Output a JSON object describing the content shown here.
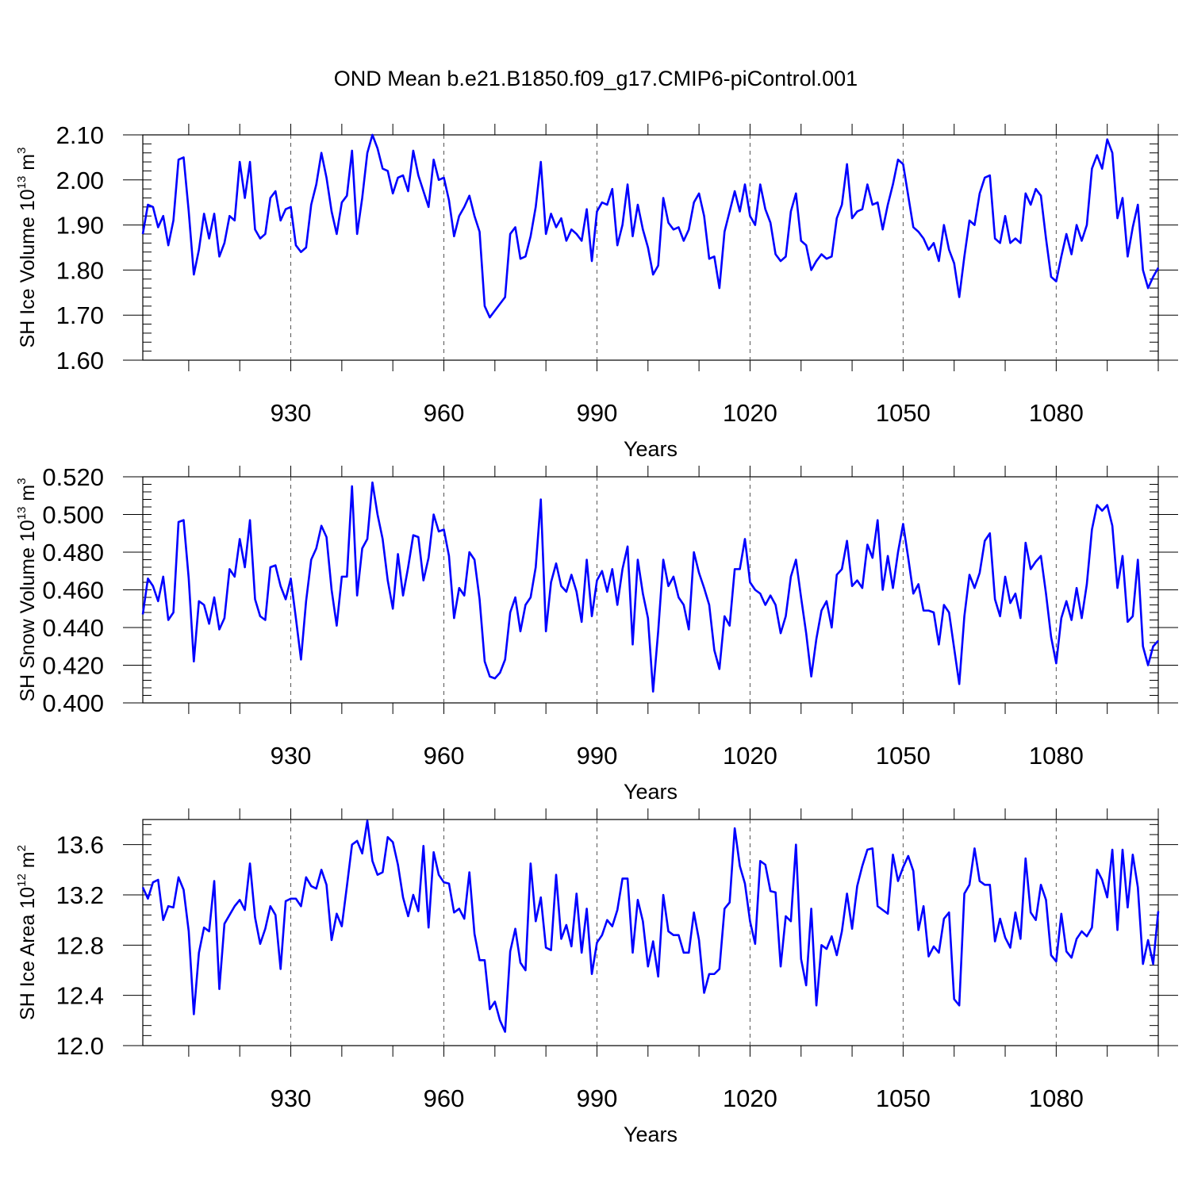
{
  "title": "OND Mean b.e21.B1850.f09_g17.CMIP6-piControl.001",
  "line_color": "#0000ff",
  "chart_data": [
    {
      "type": "line",
      "name": "sh-ice-volume",
      "ylabel_parts": [
        "SH Ice Volume 10",
        "13",
        " m",
        "3"
      ],
      "xlabel": "Years",
      "xlim": [
        901,
        1100
      ],
      "xticks": [
        "930",
        "960",
        "990",
        "1020",
        "1050",
        "1080"
      ],
      "ylim": [
        1.6,
        2.1
      ],
      "yticks": [
        "1.60",
        "1.70",
        "1.80",
        "1.90",
        "2.00",
        "2.10"
      ],
      "yminor": 0.02,
      "x_start": 901,
      "values": [
        1.88,
        1.945,
        1.94,
        1.895,
        1.92,
        1.855,
        1.91,
        2.045,
        2.05,
        1.93,
        1.79,
        1.845,
        1.925,
        1.87,
        1.925,
        1.83,
        1.86,
        1.92,
        1.91,
        2.04,
        1.96,
        2.04,
        1.89,
        1.87,
        1.88,
        1.96,
        1.975,
        1.91,
        1.935,
        1.94,
        1.855,
        1.84,
        1.85,
        1.945,
        1.99,
        2.06,
        2.005,
        1.93,
        1.88,
        1.95,
        1.965,
        2.065,
        1.88,
        1.96,
        2.06,
        2.1,
        2.07,
        2.025,
        2.02,
        1.97,
        2.005,
        2.01,
        1.975,
        2.065,
        2.01,
        1.975,
        1.94,
        2.045,
        2.0,
        2.005,
        1.955,
        1.875,
        1.92,
        1.94,
        1.965,
        1.92,
        1.885,
        1.72,
        1.695,
        1.71,
        1.725,
        1.74,
        1.88,
        1.895,
        1.825,
        1.83,
        1.875,
        1.94,
        2.04,
        1.88,
        1.925,
        1.895,
        1.915,
        1.865,
        1.89,
        1.88,
        1.865,
        1.935,
        1.82,
        1.93,
        1.95,
        1.945,
        1.98,
        1.855,
        1.9,
        1.99,
        1.875,
        1.945,
        1.89,
        1.85,
        1.79,
        1.81,
        1.96,
        1.905,
        1.89,
        1.895,
        1.865,
        1.89,
        1.95,
        1.97,
        1.92,
        1.825,
        1.83,
        1.76,
        1.885,
        1.93,
        1.975,
        1.93,
        1.99,
        1.92,
        1.9,
        1.99,
        1.935,
        1.905,
        1.835,
        1.82,
        1.83,
        1.93,
        1.97,
        1.865,
        1.855,
        1.8,
        1.82,
        1.835,
        1.825,
        1.83,
        1.915,
        1.945,
        2.035,
        1.915,
        1.93,
        1.935,
        1.99,
        1.945,
        1.95,
        1.89,
        1.945,
        1.99,
        2.045,
        2.035,
        1.965,
        1.895,
        1.885,
        1.87,
        1.845,
        1.86,
        1.82,
        1.9,
        1.845,
        1.815,
        1.74,
        1.83,
        1.91,
        1.9,
        1.97,
        2.005,
        2.01,
        1.87,
        1.86,
        1.92,
        1.86,
        1.87,
        1.86,
        1.97,
        1.945,
        1.98,
        1.965,
        1.87,
        1.785,
        1.775,
        1.83,
        1.88,
        1.835,
        1.9,
        1.865,
        1.9,
        2.025,
        2.055,
        2.025,
        2.09,
        2.06,
        1.915,
        1.96,
        1.83,
        1.895,
        1.945,
        1.8,
        1.76,
        1.785,
        1.805
      ]
    },
    {
      "type": "line",
      "name": "sh-snow-volume",
      "ylabel_parts": [
        "SH Snow Volume 10",
        "13",
        " m",
        "3"
      ],
      "xlabel": "Years",
      "xlim": [
        901,
        1100
      ],
      "xticks": [
        "930",
        "960",
        "990",
        "1020",
        "1050",
        "1080"
      ],
      "ylim": [
        0.4,
        0.52
      ],
      "yticks": [
        "0.400",
        "0.420",
        "0.440",
        "0.460",
        "0.480",
        "0.500",
        "0.520"
      ],
      "yminor": 0.004,
      "x_start": 901,
      "values": [
        0.447,
        0.466,
        0.462,
        0.454,
        0.467,
        0.444,
        0.448,
        0.496,
        0.497,
        0.466,
        0.422,
        0.454,
        0.452,
        0.442,
        0.456,
        0.439,
        0.445,
        0.471,
        0.467,
        0.487,
        0.472,
        0.497,
        0.455,
        0.446,
        0.444,
        0.472,
        0.473,
        0.462,
        0.455,
        0.466,
        0.445,
        0.423,
        0.454,
        0.476,
        0.482,
        0.494,
        0.488,
        0.46,
        0.441,
        0.467,
        0.467,
        0.515,
        0.457,
        0.482,
        0.487,
        0.517,
        0.5,
        0.487,
        0.465,
        0.45,
        0.479,
        0.457,
        0.472,
        0.489,
        0.488,
        0.465,
        0.477,
        0.5,
        0.491,
        0.492,
        0.478,
        0.445,
        0.461,
        0.457,
        0.48,
        0.476,
        0.455,
        0.422,
        0.414,
        0.413,
        0.416,
        0.423,
        0.448,
        0.456,
        0.438,
        0.452,
        0.456,
        0.472,
        0.508,
        0.438,
        0.464,
        0.474,
        0.462,
        0.459,
        0.468,
        0.459,
        0.443,
        0.476,
        0.446,
        0.465,
        0.47,
        0.459,
        0.471,
        0.452,
        0.471,
        0.483,
        0.431,
        0.476,
        0.458,
        0.445,
        0.406,
        0.438,
        0.476,
        0.462,
        0.467,
        0.456,
        0.452,
        0.439,
        0.48,
        0.469,
        0.461,
        0.452,
        0.428,
        0.418,
        0.446,
        0.441,
        0.471,
        0.471,
        0.487,
        0.464,
        0.46,
        0.458,
        0.452,
        0.457,
        0.452,
        0.437,
        0.446,
        0.467,
        0.476,
        0.456,
        0.437,
        0.414,
        0.434,
        0.449,
        0.454,
        0.44,
        0.468,
        0.471,
        0.486,
        0.462,
        0.465,
        0.461,
        0.484,
        0.477,
        0.497,
        0.46,
        0.478,
        0.461,
        0.48,
        0.495,
        0.477,
        0.458,
        0.463,
        0.449,
        0.449,
        0.448,
        0.431,
        0.452,
        0.448,
        0.429,
        0.41,
        0.446,
        0.468,
        0.461,
        0.469,
        0.486,
        0.49,
        0.455,
        0.446,
        0.467,
        0.453,
        0.458,
        0.445,
        0.485,
        0.471,
        0.475,
        0.478,
        0.458,
        0.435,
        0.421,
        0.445,
        0.454,
        0.444,
        0.461,
        0.445,
        0.463,
        0.492,
        0.505,
        0.502,
        0.505,
        0.494,
        0.461,
        0.478,
        0.443,
        0.446,
        0.476,
        0.43,
        0.42,
        0.43,
        0.433
      ]
    },
    {
      "type": "line",
      "name": "sh-ice-area",
      "ylabel_parts": [
        "SH Ice Area 10",
        "12",
        " m",
        "2"
      ],
      "xlabel": "Years",
      "xlim": [
        901,
        1100
      ],
      "xticks": [
        "930",
        "960",
        "990",
        "1020",
        "1050",
        "1080"
      ],
      "ylim": [
        12.0,
        13.8
      ],
      "yticks": [
        "12.0",
        "12.4",
        "12.8",
        "13.2",
        "13.6"
      ],
      "yminor": 0.08,
      "x_start": 901,
      "values": [
        13.26,
        13.17,
        13.3,
        13.32,
        13.0,
        13.11,
        13.1,
        13.34,
        13.24,
        12.91,
        12.25,
        12.74,
        12.94,
        12.91,
        13.31,
        12.45,
        12.97,
        13.04,
        13.11,
        13.16,
        13.08,
        13.45,
        13.02,
        12.81,
        12.93,
        13.11,
        13.04,
        12.61,
        13.15,
        13.17,
        13.17,
        13.11,
        13.34,
        13.27,
        13.25,
        13.4,
        13.28,
        12.84,
        13.05,
        12.95,
        13.27,
        13.6,
        13.63,
        13.53,
        13.79,
        13.47,
        13.36,
        13.38,
        13.66,
        13.62,
        13.44,
        13.18,
        13.03,
        13.2,
        13.07,
        13.59,
        12.94,
        13.54,
        13.36,
        13.3,
        13.29,
        13.06,
        13.09,
        13.01,
        13.38,
        12.89,
        12.68,
        12.68,
        12.29,
        12.35,
        12.2,
        12.11,
        12.75,
        12.93,
        12.66,
        12.6,
        13.45,
        12.99,
        13.18,
        12.78,
        12.76,
        13.36,
        12.85,
        12.96,
        12.79,
        13.21,
        12.74,
        13.09,
        12.57,
        12.82,
        12.88,
        13.0,
        12.95,
        13.08,
        13.33,
        13.33,
        12.74,
        13.16,
        12.99,
        12.63,
        12.83,
        12.55,
        13.2,
        12.91,
        12.88,
        12.88,
        12.74,
        12.74,
        13.06,
        12.84,
        12.42,
        12.57,
        12.57,
        12.61,
        13.09,
        13.14,
        13.73,
        13.43,
        13.29,
        12.99,
        12.81,
        13.47,
        13.44,
        13.23,
        13.22,
        12.63,
        13.03,
        12.99,
        13.6,
        12.69,
        12.48,
        13.09,
        12.32,
        12.8,
        12.77,
        12.87,
        12.72,
        12.91,
        13.21,
        12.93,
        13.27,
        13.43,
        13.56,
        13.57,
        13.11,
        13.08,
        13.05,
        13.52,
        13.31,
        13.42,
        13.51,
        13.39,
        12.92,
        13.11,
        12.71,
        12.79,
        12.74,
        13.01,
        13.06,
        12.37,
        12.32,
        13.21,
        13.28,
        13.57,
        13.31,
        13.28,
        13.28,
        12.83,
        13.01,
        12.86,
        12.78,
        13.06,
        12.85,
        13.49,
        13.06,
        13.0,
        13.28,
        13.16,
        12.72,
        12.67,
        13.05,
        12.75,
        12.7,
        12.85,
        12.91,
        12.87,
        12.94,
        13.4,
        13.32,
        13.18,
        13.56,
        12.92,
        13.56,
        13.1,
        13.52,
        13.26,
        12.65,
        12.84,
        12.65,
        13.07
      ]
    }
  ]
}
